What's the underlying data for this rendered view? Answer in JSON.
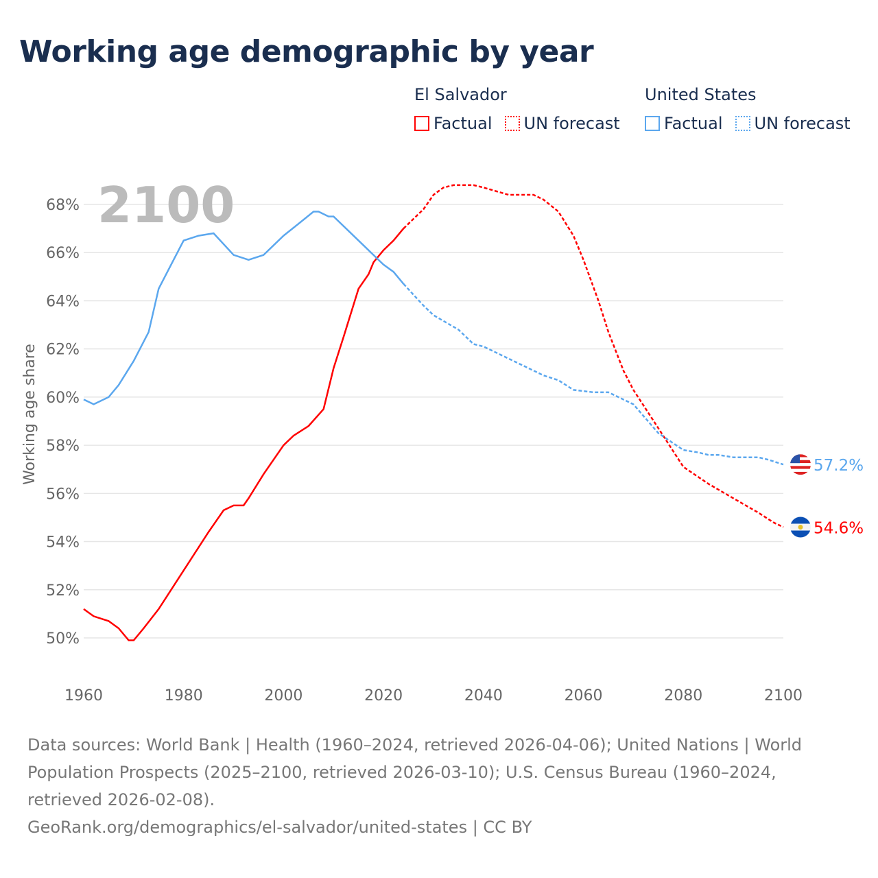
{
  "title": "Working age demographic by year",
  "legend": {
    "groups": [
      {
        "name": "El Salvador",
        "factual": "Factual",
        "forecast": "UN forecast",
        "color": "#ff0000"
      },
      {
        "name": "United States",
        "factual": "Factual",
        "forecast": "UN forecast",
        "color": "#5ba7ee"
      }
    ]
  },
  "footer": {
    "sources": "Data sources: World Bank | Health (1960–2024, retrieved 2026-04-06); United Nations | World Population Prospects (2025–2100, retrieved 2026-03-10); U.S. Census Bureau (1960–2024, retrieved 2026-02-08).",
    "link": "GeoRank.org/demographics/el-salvador/united-states | CC BY"
  },
  "chart_data": {
    "type": "line",
    "title": "Working age demographic by year",
    "xlabel": "",
    "ylabel": "Working age share",
    "year_label": "2100",
    "xlim": [
      1960,
      2100
    ],
    "ylim": [
      50,
      68
    ],
    "x_ticks": [
      "1960",
      "1980",
      "2000",
      "2020",
      "2040",
      "2060",
      "2080",
      "2100"
    ],
    "y_ticks": [
      "50%",
      "52%",
      "54%",
      "56%",
      "58%",
      "60%",
      "62%",
      "64%",
      "66%",
      "68%"
    ],
    "forecast_start": 2024,
    "series": [
      {
        "name": "El Salvador",
        "color": "#ff0000",
        "end_label": "54.6%",
        "flag": "el-salvador-flag",
        "x": [
          1960,
          1962,
          1965,
          1967,
          1969,
          1970,
          1972,
          1975,
          1980,
          1985,
          1988,
          1990,
          1992,
          1993,
          1996,
          2000,
          2002,
          2005,
          2008,
          2010,
          2012,
          2015,
          2017,
          2018,
          2020,
          2022,
          2024,
          2028,
          2030,
          2032,
          2034,
          2038,
          2040,
          2045,
          2050,
          2052,
          2055,
          2058,
          2060,
          2063,
          2065,
          2068,
          2070,
          2075,
          2080,
          2085,
          2090,
          2095,
          2098,
          2100
        ],
        "values": [
          51.2,
          50.9,
          50.7,
          50.4,
          49.9,
          49.9,
          50.4,
          51.2,
          52.8,
          54.4,
          55.3,
          55.5,
          55.5,
          55.8,
          56.8,
          58.0,
          58.4,
          58.8,
          59.5,
          61.2,
          62.5,
          64.5,
          65.1,
          65.6,
          66.1,
          66.5,
          67.0,
          67.8,
          68.4,
          68.7,
          68.8,
          68.8,
          68.7,
          68.4,
          68.4,
          68.2,
          67.7,
          66.7,
          65.7,
          64.0,
          62.7,
          61.1,
          60.3,
          58.7,
          57.1,
          56.4,
          55.8,
          55.2,
          54.8,
          54.6
        ]
      },
      {
        "name": "United States",
        "color": "#5ba7ee",
        "end_label": "57.2%",
        "flag": "united-states-flag",
        "x": [
          1960,
          1962,
          1965,
          1967,
          1970,
          1973,
          1975,
          1978,
          1980,
          1983,
          1986,
          1990,
          1993,
          1996,
          2000,
          2003,
          2006,
          2007,
          2009,
          2010,
          2015,
          2020,
          2022,
          2024,
          2028,
          2030,
          2035,
          2038,
          2040,
          2045,
          2048,
          2052,
          2055,
          2058,
          2062,
          2065,
          2070,
          2075,
          2080,
          2083,
          2085,
          2087,
          2090,
          2095,
          2097,
          2100
        ],
        "values": [
          59.9,
          59.7,
          60.0,
          60.5,
          61.5,
          62.7,
          64.5,
          65.7,
          66.5,
          66.7,
          66.8,
          65.9,
          65.7,
          65.9,
          66.7,
          67.2,
          67.7,
          67.7,
          67.5,
          67.5,
          66.5,
          65.5,
          65.2,
          64.7,
          63.8,
          63.4,
          62.8,
          62.2,
          62.1,
          61.6,
          61.3,
          60.9,
          60.7,
          60.3,
          60.2,
          60.2,
          59.7,
          58.5,
          57.8,
          57.7,
          57.6,
          57.6,
          57.5,
          57.5,
          57.4,
          57.2
        ]
      }
    ]
  }
}
